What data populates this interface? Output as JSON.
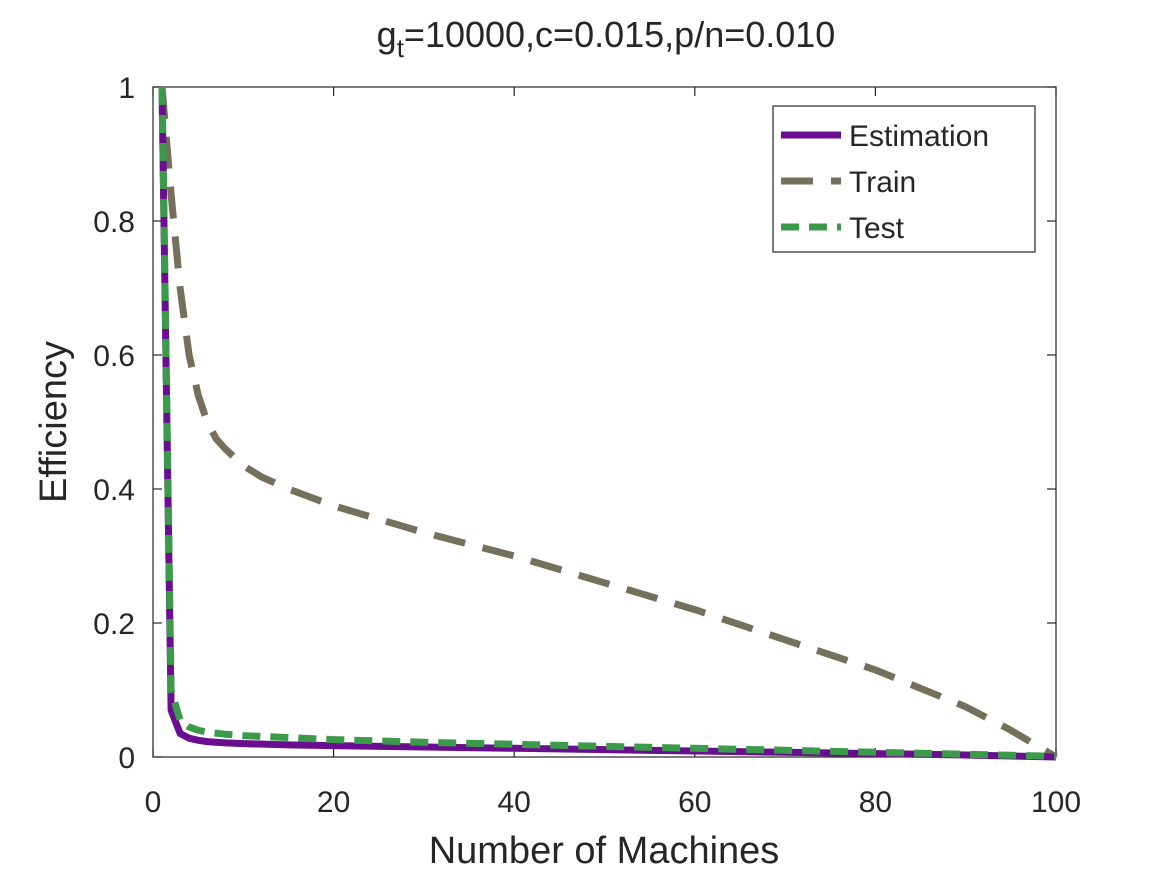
{
  "chart_data": {
    "type": "line",
    "title_main": "g",
    "title_sub": "t",
    "title_rest": "=10000,c=0.015,p/n=0.010",
    "xlabel": "Number of Machines",
    "ylabel": "Efficiency",
    "xlim": [
      0,
      100
    ],
    "ylim": [
      0,
      1
    ],
    "xticks": [
      "0",
      "20",
      "40",
      "60",
      "80",
      "100"
    ],
    "yticks": [
      "0",
      "0.2",
      "0.4",
      "0.6",
      "0.8",
      "1"
    ],
    "grid": false,
    "legend_position": "top-right",
    "series": [
      {
        "name": "Estimation",
        "color": "#6a0d91",
        "style": "solid",
        "x": [
          1,
          2,
          3,
          4,
          5,
          6,
          8,
          10,
          15,
          20,
          30,
          40,
          50,
          60,
          70,
          80,
          90,
          100
        ],
        "y": [
          1.0,
          0.07,
          0.035,
          0.028,
          0.025,
          0.023,
          0.021,
          0.02,
          0.018,
          0.017,
          0.015,
          0.013,
          0.011,
          0.009,
          0.007,
          0.005,
          0.003,
          0.0
        ]
      },
      {
        "name": "Train",
        "color": "#75705c",
        "style": "dashed",
        "x": [
          1,
          2,
          3,
          4,
          5,
          6,
          7,
          8,
          10,
          12,
          15,
          20,
          30,
          40,
          50,
          60,
          70,
          80,
          90,
          95,
          100
        ],
        "y": [
          1.0,
          0.84,
          0.7,
          0.6,
          0.54,
          0.5,
          0.475,
          0.46,
          0.435,
          0.418,
          0.4,
          0.375,
          0.335,
          0.3,
          0.26,
          0.22,
          0.175,
          0.13,
          0.075,
          0.04,
          0.0
        ]
      },
      {
        "name": "Test",
        "color": "#3c9b4b",
        "style": "dashed",
        "x": [
          1,
          2,
          3,
          4,
          5,
          6,
          8,
          10,
          15,
          20,
          30,
          40,
          50,
          60,
          70,
          80,
          90,
          100
        ],
        "y": [
          1.0,
          0.1,
          0.055,
          0.045,
          0.04,
          0.037,
          0.034,
          0.032,
          0.029,
          0.026,
          0.022,
          0.019,
          0.016,
          0.013,
          0.01,
          0.007,
          0.004,
          0.001
        ]
      }
    ]
  }
}
